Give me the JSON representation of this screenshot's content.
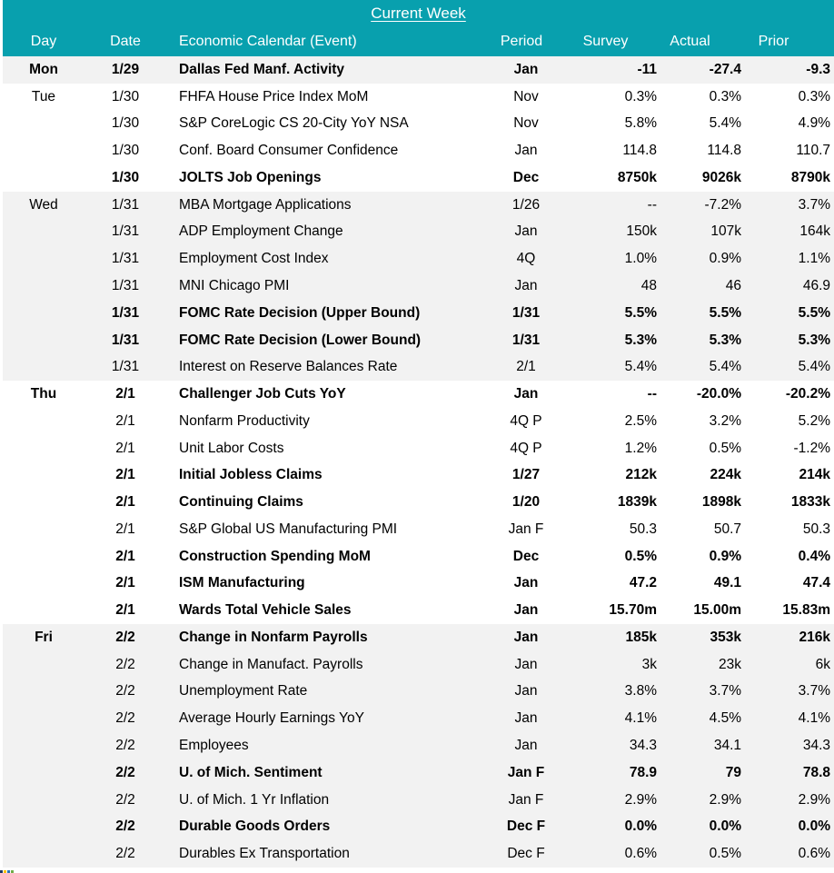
{
  "title": "Current Week",
  "columns": {
    "day": "Day",
    "date": "Date",
    "event": "Economic Calendar (Event)",
    "period": "Period",
    "survey": "Survey",
    "actual": "Actual",
    "prior": "Prior"
  },
  "colors": {
    "header_teal": "#08a0ae",
    "band_gray": "#f2f2f2",
    "row_white": "#ffffff",
    "header_text": "#ffffff",
    "body_text": "#000000"
  },
  "artifact_colors": [
    "#203864",
    "#ffc000",
    "#2e75b6",
    "#70ad47"
  ],
  "rows": [
    {
      "day": "Mon",
      "date": "1/29",
      "event": "Dallas Fed Manf. Activity",
      "period": "Jan",
      "survey": "-11",
      "actual": "-27.4",
      "prior": "-9.3",
      "bold": true,
      "shaded": true
    },
    {
      "day": "Tue",
      "date": "1/30",
      "event": "FHFA House Price Index MoM",
      "period": "Nov",
      "survey": "0.3%",
      "actual": "0.3%",
      "prior": "0.3%",
      "bold": false,
      "shaded": false
    },
    {
      "day": "",
      "date": "1/30",
      "event": "S&P CoreLogic CS 20-City YoY NSA",
      "period": "Nov",
      "survey": "5.8%",
      "actual": "5.4%",
      "prior": "4.9%",
      "bold": false,
      "shaded": false
    },
    {
      "day": "",
      "date": "1/30",
      "event": "Conf. Board Consumer Confidence",
      "period": "Jan",
      "survey": "114.8",
      "actual": "114.8",
      "prior": "110.7",
      "bold": false,
      "shaded": false
    },
    {
      "day": "",
      "date": "1/30",
      "event": "JOLTS Job Openings",
      "period": "Dec",
      "survey": "8750k",
      "actual": "9026k",
      "prior": "8790k",
      "bold": true,
      "shaded": false
    },
    {
      "day": "Wed",
      "date": "1/31",
      "event": "MBA Mortgage Applications",
      "period": "1/26",
      "survey": "--",
      "actual": "-7.2%",
      "prior": "3.7%",
      "bold": false,
      "shaded": true
    },
    {
      "day": "",
      "date": "1/31",
      "event": "ADP Employment Change",
      "period": "Jan",
      "survey": "150k",
      "actual": "107k",
      "prior": "164k",
      "bold": false,
      "shaded": true
    },
    {
      "day": "",
      "date": "1/31",
      "event": "Employment Cost Index",
      "period": "4Q",
      "survey": "1.0%",
      "actual": "0.9%",
      "prior": "1.1%",
      "bold": false,
      "shaded": true
    },
    {
      "day": "",
      "date": "1/31",
      "event": "MNI Chicago PMI",
      "period": "Jan",
      "survey": "48",
      "actual": "46",
      "prior": "46.9",
      "bold": false,
      "shaded": true
    },
    {
      "day": "",
      "date": "1/31",
      "event": "FOMC Rate Decision (Upper Bound)",
      "period": "1/31",
      "survey": "5.5%",
      "actual": "5.5%",
      "prior": "5.5%",
      "bold": true,
      "shaded": true
    },
    {
      "day": "",
      "date": "1/31",
      "event": "FOMC Rate Decision (Lower Bound)",
      "period": "1/31",
      "survey": "5.3%",
      "actual": "5.3%",
      "prior": "5.3%",
      "bold": true,
      "shaded": true
    },
    {
      "day": "",
      "date": "1/31",
      "event": "Interest on Reserve Balances Rate",
      "period": "2/1",
      "survey": "5.4%",
      "actual": "5.4%",
      "prior": "5.4%",
      "bold": false,
      "shaded": true
    },
    {
      "day": "Thu",
      "date": "2/1",
      "event": "Challenger Job Cuts YoY",
      "period": "Jan",
      "survey": "--",
      "actual": "-20.0%",
      "prior": "-20.2%",
      "bold": true,
      "shaded": false
    },
    {
      "day": "",
      "date": "2/1",
      "event": "Nonfarm Productivity",
      "period": "4Q P",
      "survey": "2.5%",
      "actual": "3.2%",
      "prior": "5.2%",
      "bold": false,
      "shaded": false
    },
    {
      "day": "",
      "date": "2/1",
      "event": "Unit Labor Costs",
      "period": "4Q P",
      "survey": "1.2%",
      "actual": "0.5%",
      "prior": "-1.2%",
      "bold": false,
      "shaded": false
    },
    {
      "day": "",
      "date": "2/1",
      "event": "Initial Jobless Claims",
      "period": "1/27",
      "survey": "212k",
      "actual": "224k",
      "prior": "214k",
      "bold": true,
      "shaded": false
    },
    {
      "day": "",
      "date": "2/1",
      "event": "Continuing Claims",
      "period": "1/20",
      "survey": "1839k",
      "actual": "1898k",
      "prior": "1833k",
      "bold": true,
      "shaded": false
    },
    {
      "day": "",
      "date": "2/1",
      "event": "S&P Global US Manufacturing PMI",
      "period": "Jan F",
      "survey": "50.3",
      "actual": "50.7",
      "prior": "50.3",
      "bold": false,
      "shaded": false
    },
    {
      "day": "",
      "date": "2/1",
      "event": "Construction Spending MoM",
      "period": "Dec",
      "survey": "0.5%",
      "actual": "0.9%",
      "prior": "0.4%",
      "bold": true,
      "shaded": false
    },
    {
      "day": "",
      "date": "2/1",
      "event": "ISM Manufacturing",
      "period": "Jan",
      "survey": "47.2",
      "actual": "49.1",
      "prior": "47.4",
      "bold": true,
      "shaded": false
    },
    {
      "day": "",
      "date": "2/1",
      "event": "Wards Total Vehicle Sales",
      "period": "Jan",
      "survey": "15.70m",
      "actual": "15.00m",
      "prior": "15.83m",
      "bold": true,
      "shaded": false
    },
    {
      "day": "Fri",
      "date": "2/2",
      "event": "Change in Nonfarm Payrolls",
      "period": "Jan",
      "survey": "185k",
      "actual": "353k",
      "prior": "216k",
      "bold": true,
      "shaded": true
    },
    {
      "day": "",
      "date": "2/2",
      "event": "Change in Manufact. Payrolls",
      "period": "Jan",
      "survey": "3k",
      "actual": "23k",
      "prior": "6k",
      "bold": false,
      "shaded": true
    },
    {
      "day": "",
      "date": "2/2",
      "event": "Unemployment Rate",
      "period": "Jan",
      "survey": "3.8%",
      "actual": "3.7%",
      "prior": "3.7%",
      "bold": false,
      "shaded": true
    },
    {
      "day": "",
      "date": "2/2",
      "event": "Average Hourly Earnings YoY",
      "period": "Jan",
      "survey": "4.1%",
      "actual": "4.5%",
      "prior": "4.1%",
      "bold": false,
      "shaded": true
    },
    {
      "day": "",
      "date": "2/2",
      "event": "Employees",
      "period": "Jan",
      "survey": "34.3",
      "actual": "34.1",
      "prior": "34.3",
      "bold": false,
      "shaded": true
    },
    {
      "day": "",
      "date": "2/2",
      "event": "U. of Mich. Sentiment",
      "period": "Jan F",
      "survey": "78.9",
      "actual": "79",
      "prior": "78.8",
      "bold": true,
      "shaded": true
    },
    {
      "day": "",
      "date": "2/2",
      "event": "U. of Mich. 1 Yr Inflation",
      "period": "Jan F",
      "survey": "2.9%",
      "actual": "2.9%",
      "prior": "2.9%",
      "bold": false,
      "shaded": true
    },
    {
      "day": "",
      "date": "2/2",
      "event": "Durable Goods Orders",
      "period": "Dec F",
      "survey": "0.0%",
      "actual": "0.0%",
      "prior": "0.0%",
      "bold": true,
      "shaded": true
    },
    {
      "day": "",
      "date": "2/2",
      "event": "Durables Ex Transportation",
      "period": "Dec F",
      "survey": "0.6%",
      "actual": "0.5%",
      "prior": "0.6%",
      "bold": false,
      "shaded": true
    }
  ]
}
